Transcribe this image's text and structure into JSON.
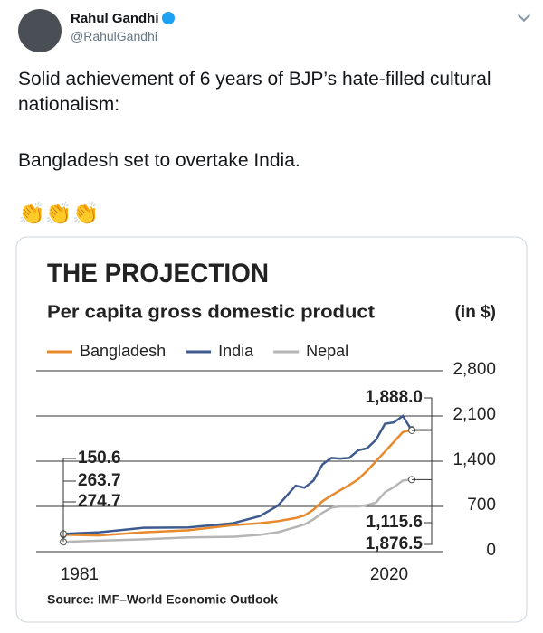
{
  "tweet": {
    "author": "Rahul Gandhi",
    "handle": "@RahulGandhi",
    "paragraphs": [
      "Solid achievement of 6 years of BJP’s hate-filled cultural nationalism:",
      "Bangladesh set to overtake India."
    ],
    "emoji": "👏👏👏"
  },
  "chart_data": {
    "type": "line",
    "title": "THE PROJECTION",
    "subtitle": "Per capita gross domestic product",
    "y_label": "(in $)",
    "source": "Source: IMF–World Economic Outlook",
    "x": [
      1981,
      1985,
      1990,
      1995,
      2000,
      2003,
      2005,
      2007,
      2008,
      2009,
      2010,
      2011,
      2012,
      2013,
      2014,
      2015,
      2016,
      2017,
      2018,
      2019,
      2020
    ],
    "xlim": [
      1981,
      2020
    ],
    "xticks": [
      1981,
      2020
    ],
    "ylim": [
      0,
      2800
    ],
    "yticks": [
      0,
      {
        "value": 700,
        "label": "700"
      },
      {
        "value": 1400,
        "label": "1,400"
      },
      {
        "value": 2100,
        "label": "2,100"
      },
      {
        "value": 2800,
        "label": "2,800"
      }
    ],
    "grid": true,
    "series": [
      {
        "name": "Bangladesh",
        "color": "#e8892d",
        "values": [
          263.7,
          250,
          300,
          330,
          410,
          440,
          470,
          520,
          560,
          650,
          780,
          870,
          950,
          1030,
          1120,
          1250,
          1400,
          1550,
          1700,
          1850,
          1888.0
        ],
        "value_labels": [
          "263.7",
          null,
          null,
          null,
          null,
          null,
          null,
          null,
          null,
          null,
          null,
          null,
          null,
          null,
          null,
          null,
          null,
          null,
          null,
          null,
          "1,888.0"
        ]
      },
      {
        "name": "India",
        "color": "#3e5a8e",
        "values": [
          274.7,
          300,
          370,
          375,
          440,
          550,
          710,
          1020,
          990,
          1100,
          1350,
          1450,
          1440,
          1450,
          1570,
          1600,
          1730,
          1980,
          2000,
          2100,
          1876.5
        ],
        "value_labels": [
          "274.7",
          null,
          null,
          null,
          null,
          null,
          null,
          null,
          null,
          null,
          null,
          null,
          null,
          null,
          null,
          null,
          null,
          null,
          null,
          null,
          "1,876.5"
        ]
      },
      {
        "name": "Nepal",
        "color": "#b5b5b5",
        "values": [
          150.6,
          170,
          190,
          220,
          230,
          260,
          300,
          380,
          420,
          500,
          600,
          680,
          700,
          700,
          700,
          720,
          760,
          920,
          1000,
          1100,
          1115.6
        ],
        "value_labels": [
          "150.6",
          null,
          null,
          null,
          null,
          null,
          null,
          null,
          null,
          null,
          null,
          null,
          null,
          null,
          null,
          null,
          null,
          null,
          null,
          null,
          "1,115.6"
        ]
      }
    ]
  }
}
